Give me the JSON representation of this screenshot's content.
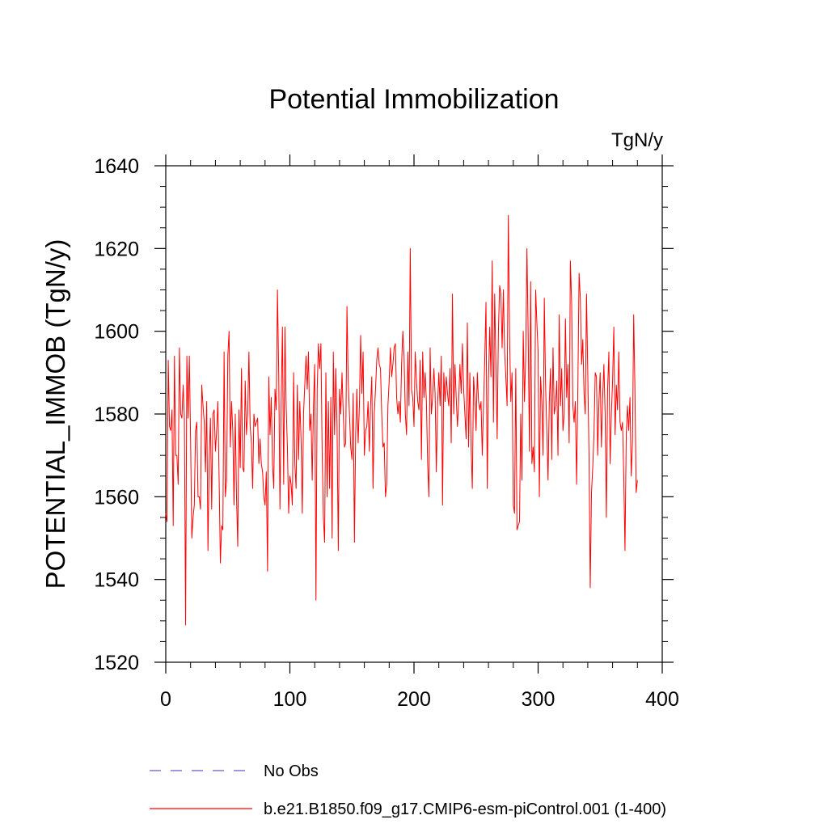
{
  "chart_data": {
    "type": "line",
    "title": "Potential Immobilization",
    "units": "TgN/y",
    "xlabel": "",
    "ylabel": "POTENTIAL_IMMOB  (TgN/y)",
    "xlim": [
      0,
      400
    ],
    "ylim": [
      1520,
      1640
    ],
    "x_ticks": [
      0,
      100,
      200,
      300,
      400
    ],
    "x_tick_labels": [
      "0",
      "100",
      "200",
      "300",
      "400"
    ],
    "y_ticks": [
      1520,
      1540,
      1560,
      1580,
      1600,
      1620,
      1640
    ],
    "y_tick_labels": [
      "1520",
      "1540",
      "1560",
      "1580",
      "1600",
      "1620",
      "1640"
    ],
    "grid": false,
    "legend_position": "bottom",
    "colors": {
      "model": "#ff0000",
      "obs": "#6a5acd"
    },
    "series": [
      {
        "name": "b.e21.B1850.f09_g17.CMIP6-esm-piControl.001 (1-400)",
        "color": "#ff0000",
        "dash": "solid",
        "x_start": 0,
        "x_step": 1,
        "values": [
          1556,
          1554,
          1593,
          1577,
          1576,
          1581,
          1553,
          1594,
          1570,
          1570,
          1563,
          1596,
          1580,
          1579,
          1587,
          1579,
          1529,
          1594,
          1579,
          1594,
          1574,
          1550,
          1555,
          1558,
          1576,
          1578,
          1560,
          1560,
          1557,
          1587,
          1582,
          1578,
          1566,
          1583,
          1547,
          1569,
          1579,
          1557,
          1580,
          1581,
          1571,
          1576,
          1583,
          1564,
          1544,
          1553,
          1552,
          1595,
          1560,
          1564,
          1594,
          1600,
          1572,
          1583,
          1576,
          1558,
          1580,
          1560,
          1548,
          1581,
          1567,
          1591,
          1567,
          1566,
          1588,
          1575,
          1580,
          1595,
          1577,
          1573,
          1562,
          1580,
          1577,
          1578,
          1579,
          1568,
          1574,
          1568,
          1566,
          1560,
          1558,
          1566,
          1542,
          1589,
          1575,
          1584,
          1568,
          1562,
          1586,
          1581,
          1610,
          1590,
          1557,
          1583,
          1601,
          1563,
          1601,
          1582,
          1572,
          1556,
          1565,
          1563,
          1558,
          1590,
          1568,
          1562,
          1587,
          1569,
          1583,
          1574,
          1556,
          1580,
          1587,
          1594,
          1586,
          1595,
          1576,
          1580,
          1564,
          1582,
          1592,
          1535,
          1586,
          1597,
          1591,
          1597,
          1571,
          1555,
          1549,
          1590,
          1560,
          1583,
          1562,
          1584,
          1550,
          1595,
          1575,
          1591,
          1577,
          1547,
          1586,
          1580,
          1590,
          1580,
          1572,
          1573,
          1606,
          1588,
          1580,
          1572,
          1569,
          1585,
          1549,
          1575,
          1586,
          1573,
          1582,
          1599,
          1585,
          1595,
          1570,
          1576,
          1577,
          1583,
          1571,
          1582,
          1589,
          1562,
          1580,
          1586,
          1593,
          1596,
          1592,
          1591,
          1580,
          1572,
          1573,
          1560,
          1563,
          1582,
          1588,
          1596,
          1589,
          1592,
          1596,
          1597,
          1584,
          1580,
          1583,
          1578,
          1592,
          1600,
          1594,
          1580,
          1575,
          1595,
          1582,
          1620,
          1586,
          1584,
          1577,
          1595,
          1588,
          1583,
          1581,
          1593,
          1569,
          1595,
          1584,
          1590,
          1583,
          1568,
          1560,
          1596,
          1580,
          1584,
          1591,
          1585,
          1566,
          1582,
          1590,
          1582,
          1594,
          1558,
          1590,
          1583,
          1589,
          1585,
          1582,
          1591,
          1573,
          1609,
          1580,
          1592,
          1584,
          1577,
          1583,
          1592,
          1585,
          1597,
          1586,
          1580,
          1574,
          1602,
          1572,
          1590,
          1572,
          1562,
          1589,
          1584,
          1576,
          1590,
          1583,
          1581,
          1583,
          1570,
          1582,
          1593,
          1607,
          1562,
          1588,
          1601,
          1589,
          1617,
          1578,
          1609,
          1592,
          1574,
          1600,
          1611,
          1609,
          1596,
          1610,
          1595,
          1589,
          1582,
          1628,
          1599,
          1583,
          1590,
          1558,
          1556,
          1591,
          1552,
          1553,
          1554,
          1580,
          1564,
          1600,
          1583,
          1594,
          1620,
          1599,
          1571,
          1612,
          1568,
          1572,
          1566,
          1610,
          1602,
          1595,
          1560,
          1589,
          1583,
          1570,
          1608,
          1587,
          1576,
          1564,
          1583,
          1591,
          1569,
          1596,
          1580,
          1582,
          1588,
          1570,
          1604,
          1582,
          1591,
          1576,
          1580,
          1603,
          1584,
          1592,
          1573,
          1617,
          1607,
          1582,
          1578,
          1583,
          1563,
          1586,
          1614,
          1608,
          1592,
          1598,
          1585,
          1580,
          1609,
          1590,
          1570,
          1538,
          1561,
          1567,
          1575,
          1590,
          1589,
          1570,
          1583,
          1590,
          1572,
          1584,
          1592,
          1580,
          1555,
          1586,
          1595,
          1568,
          1580,
          1588,
          1601,
          1575,
          1587,
          1581,
          1595,
          1578,
          1576,
          1578,
          1565,
          1547,
          1575,
          1582,
          1576,
          1584,
          1565,
          1573,
          1604,
          1586,
          1561,
          1564
        ]
      }
    ],
    "legend": [
      {
        "label": "No Obs",
        "color": "#6a5acd",
        "dash": "dashed"
      },
      {
        "label": "b.e21.B1850.f09_g17.CMIP6-esm-piControl.001 (1-400)",
        "color": "#ff0000",
        "dash": "solid"
      }
    ]
  }
}
